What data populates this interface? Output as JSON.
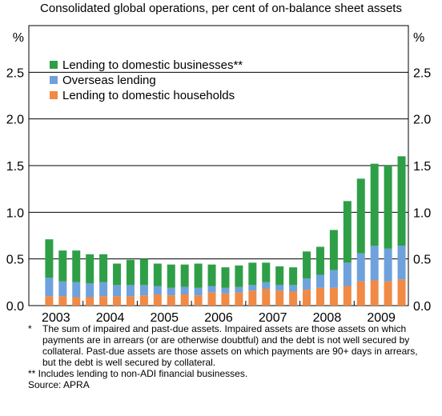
{
  "subtitle": "Consolidated global operations, per cent of on-balance sheet assets",
  "chart_data": {
    "type": "bar",
    "stacked": true,
    "y_unit_left": "%",
    "y_unit_right": "%",
    "ylim": [
      0,
      3.0
    ],
    "yticks": [
      0.0,
      0.5,
      1.0,
      1.5,
      2.0,
      2.5
    ],
    "ytick_labels": [
      "0.0",
      "0.5",
      "1.0",
      "1.5",
      "2.0",
      "2.5"
    ],
    "x_year_labels": [
      "2003",
      "2004",
      "2005",
      "2006",
      "2007",
      "2008",
      "2009"
    ],
    "categories": [
      "2003Q2",
      "2003Q3",
      "2003Q4",
      "2004Q1",
      "2004Q2",
      "2004Q3",
      "2004Q4",
      "2005Q1",
      "2005Q2",
      "2005Q3",
      "2005Q4",
      "2006Q1",
      "2006Q2",
      "2006Q3",
      "2006Q4",
      "2007Q1",
      "2007Q2",
      "2007Q3",
      "2007Q4",
      "2008Q1",
      "2008Q2",
      "2008Q3",
      "2008Q4",
      "2009Q1",
      "2009Q2",
      "2009Q3",
      "2009Q4"
    ],
    "series": [
      {
        "name": "Lending to domestic households",
        "color": "#f08a45",
        "values": [
          0.1,
          0.1,
          0.09,
          0.09,
          0.1,
          0.1,
          0.1,
          0.11,
          0.12,
          0.11,
          0.12,
          0.11,
          0.14,
          0.13,
          0.14,
          0.16,
          0.18,
          0.16,
          0.15,
          0.17,
          0.19,
          0.19,
          0.21,
          0.26,
          0.27,
          0.26,
          0.28
        ]
      },
      {
        "name": "Overseas lending",
        "color": "#6fa1dc",
        "values": [
          0.2,
          0.16,
          0.16,
          0.15,
          0.15,
          0.12,
          0.12,
          0.11,
          0.09,
          0.08,
          0.08,
          0.08,
          0.07,
          0.06,
          0.06,
          0.06,
          0.07,
          0.06,
          0.07,
          0.12,
          0.14,
          0.19,
          0.25,
          0.3,
          0.37,
          0.35,
          0.36
        ]
      },
      {
        "name": "Lending to domestic businesses**",
        "color": "#2e9f47",
        "values": [
          0.41,
          0.33,
          0.34,
          0.31,
          0.3,
          0.23,
          0.27,
          0.28,
          0.24,
          0.25,
          0.24,
          0.26,
          0.23,
          0.22,
          0.23,
          0.24,
          0.21,
          0.2,
          0.19,
          0.29,
          0.3,
          0.43,
          0.66,
          0.8,
          0.88,
          0.89,
          0.96
        ]
      }
    ],
    "legend_order": [
      "Lending to domestic businesses**",
      "Overseas lending",
      "Lending to domestic households"
    ],
    "legend_position": "top-left",
    "grid": true
  },
  "notes": {
    "star_mark": "*",
    "star_text": "The sum of impaired and past-due assets. Impaired assets are those assets on which payments are in arrears (or are otherwise doubtful) and the debt is not well secured by collateral. Past-due assets are those assets on which payments are 90+ days in arrears, but the debt is well secured by collateral.",
    "double_star": "** Includes lending to non-ADI financial businesses.",
    "source": "Source: APRA"
  }
}
